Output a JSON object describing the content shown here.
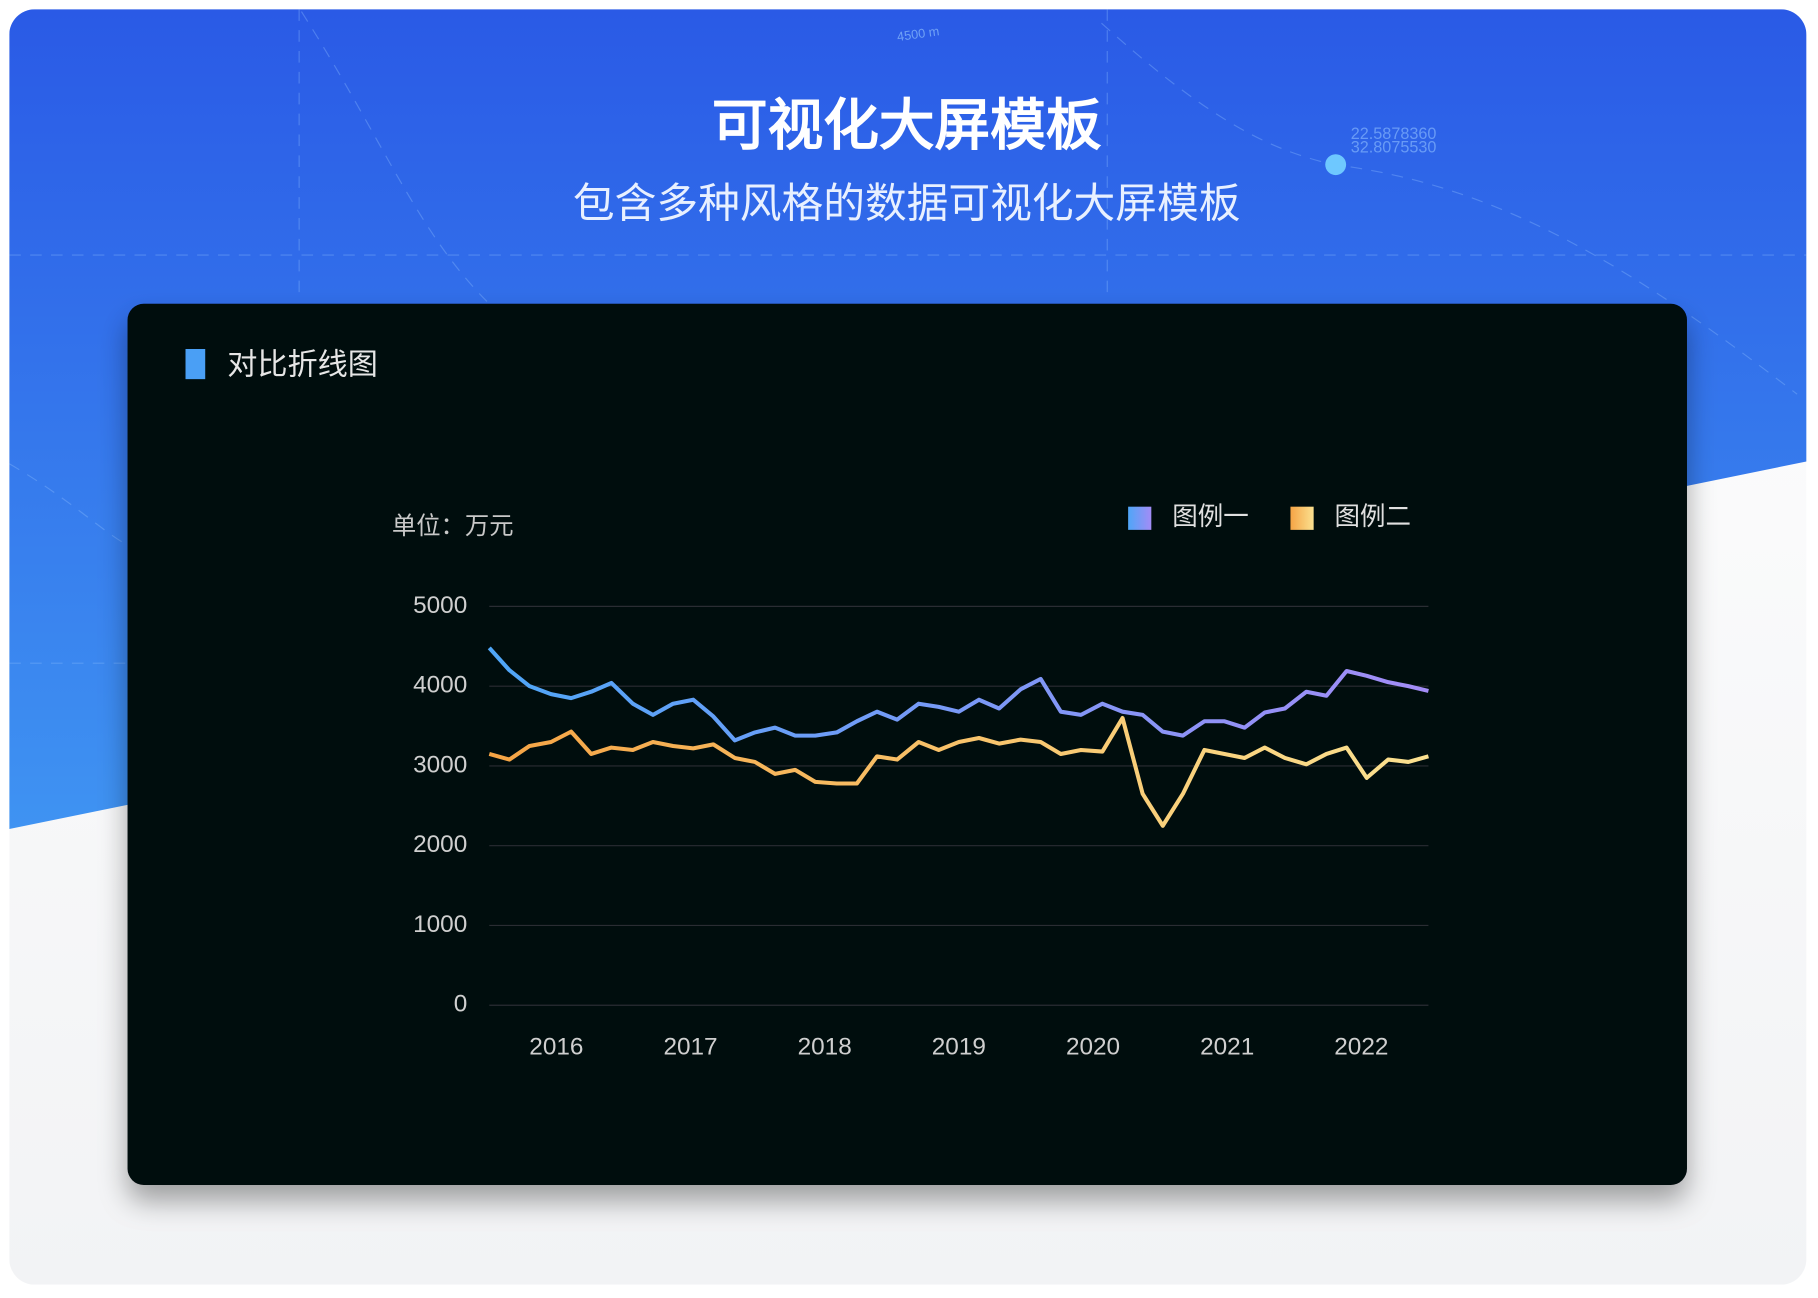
{
  "header": {
    "title": "可视化大屏模板",
    "subtitle": "包含多种风格的数据可视化大屏模板"
  },
  "background": {
    "texts": [
      "4500 m",
      "22.5878360",
      "32.8075530"
    ]
  },
  "card": {
    "title": "对比折线图"
  },
  "chart_data": {
    "type": "line",
    "unit_label": "单位：万元",
    "x": [
      2015.5,
      2015.65,
      2015.8,
      2015.96,
      2016.11,
      2016.26,
      2016.41,
      2016.57,
      2016.72,
      2016.87,
      2017.02,
      2017.17,
      2017.33,
      2017.48,
      2017.63,
      2017.78,
      2017.93,
      2018.09,
      2018.24,
      2018.39,
      2018.54,
      2018.7,
      2018.85,
      2019.0,
      2019.15,
      2019.3,
      2019.46,
      2019.61,
      2019.76,
      2019.91,
      2020.07,
      2020.22,
      2020.37,
      2020.52,
      2020.67,
      2020.83,
      2020.98,
      2021.13,
      2021.28,
      2021.43,
      2021.59,
      2021.74,
      2021.89,
      2022.04,
      2022.2,
      2022.35,
      2022.5
    ],
    "series": [
      {
        "name": "图例一",
        "colors": [
          "#4fa6f7",
          "#a38cf6"
        ],
        "values": [
          4480,
          4200,
          4000,
          3900,
          3850,
          3930,
          4040,
          3780,
          3640,
          3780,
          3830,
          3620,
          3320,
          3420,
          3480,
          3380,
          3380,
          3420,
          3560,
          3680,
          3580,
          3780,
          3740,
          3680,
          3830,
          3720,
          3960,
          4090,
          3680,
          3640,
          3780,
          3680,
          3640,
          3430,
          3380,
          3560,
          3560,
          3480,
          3670,
          3720,
          3930,
          3880,
          4190,
          4130,
          4050,
          4000,
          3940
        ]
      },
      {
        "name": "图例二",
        "colors": [
          "#f5a445",
          "#fbe190"
        ],
        "values": [
          3150,
          3080,
          3250,
          3300,
          3430,
          3150,
          3230,
          3200,
          3300,
          3250,
          3220,
          3270,
          3100,
          3050,
          2900,
          2950,
          2800,
          2780,
          2780,
          3120,
          3080,
          3300,
          3200,
          3300,
          3350,
          3280,
          3330,
          3300,
          3150,
          3200,
          3180,
          3600,
          2650,
          2250,
          2650,
          3200,
          3150,
          3100,
          3230,
          3100,
          3020,
          3150,
          3230,
          2850,
          3080,
          3050,
          3120
        ]
      }
    ],
    "xlim": [
      2015.5,
      2022.5
    ],
    "xticks": [
      2016,
      2017,
      2018,
      2019,
      2020,
      2021,
      2022
    ],
    "ylim": [
      0,
      5000
    ],
    "yticks": [
      0,
      1000,
      2000,
      3000,
      4000,
      5000
    ],
    "grid": true,
    "legend": "top-right"
  }
}
